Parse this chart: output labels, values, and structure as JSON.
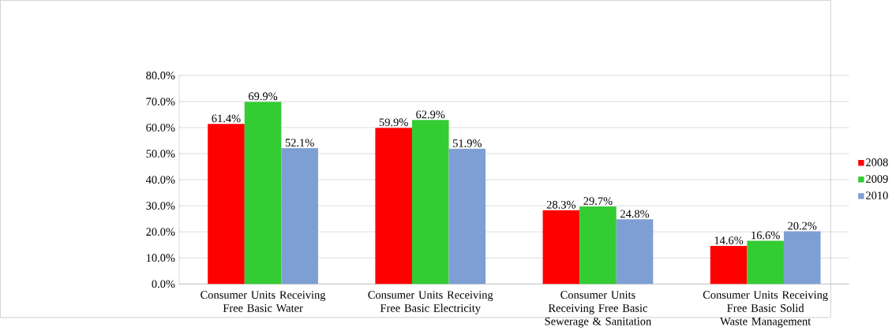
{
  "chart_data": {
    "type": "bar",
    "categories": [
      "Consumer Units Receiving Free Basic Water",
      "Consumer Units Receiving Free Basic Electricity",
      "Consumer Units Receiving Free Basic Sewerage & Sanitation",
      "Consumer Units Receiving Free Basic Solid Waste Management"
    ],
    "series": [
      {
        "name": "2008",
        "color": "#ff0000",
        "values": [
          61.4,
          59.9,
          28.3,
          14.6
        ],
        "value_labels": [
          "61.4%",
          "59.9%",
          "28.3%",
          "14.6%"
        ]
      },
      {
        "name": "2009",
        "color": "#33cc33",
        "values": [
          69.9,
          62.9,
          29.7,
          16.6
        ],
        "value_labels": [
          "69.9%",
          "62.9%",
          "29.7%",
          "16.6%"
        ]
      },
      {
        "name": "2010",
        "color": "#7e9fd3",
        "values": [
          52.1,
          51.9,
          24.8,
          20.2
        ],
        "value_labels": [
          "52.1%",
          "51.9%",
          "24.8%",
          "20.2%"
        ]
      }
    ],
    "ylim": [
      0,
      80
    ],
    "yticks": [
      {
        "value": 0,
        "label": "0.0%"
      },
      {
        "value": 10,
        "label": "10.0%"
      },
      {
        "value": 20,
        "label": "20.0%"
      },
      {
        "value": 30,
        "label": "30.0%"
      },
      {
        "value": 40,
        "label": "40.0%"
      },
      {
        "value": 50,
        "label": "50.0%"
      },
      {
        "value": 60,
        "label": "60.0%"
      },
      {
        "value": 70,
        "label": "70.0%"
      },
      {
        "value": 80,
        "label": "80.0%"
      }
    ],
    "grid": "y",
    "legend": "right"
  }
}
